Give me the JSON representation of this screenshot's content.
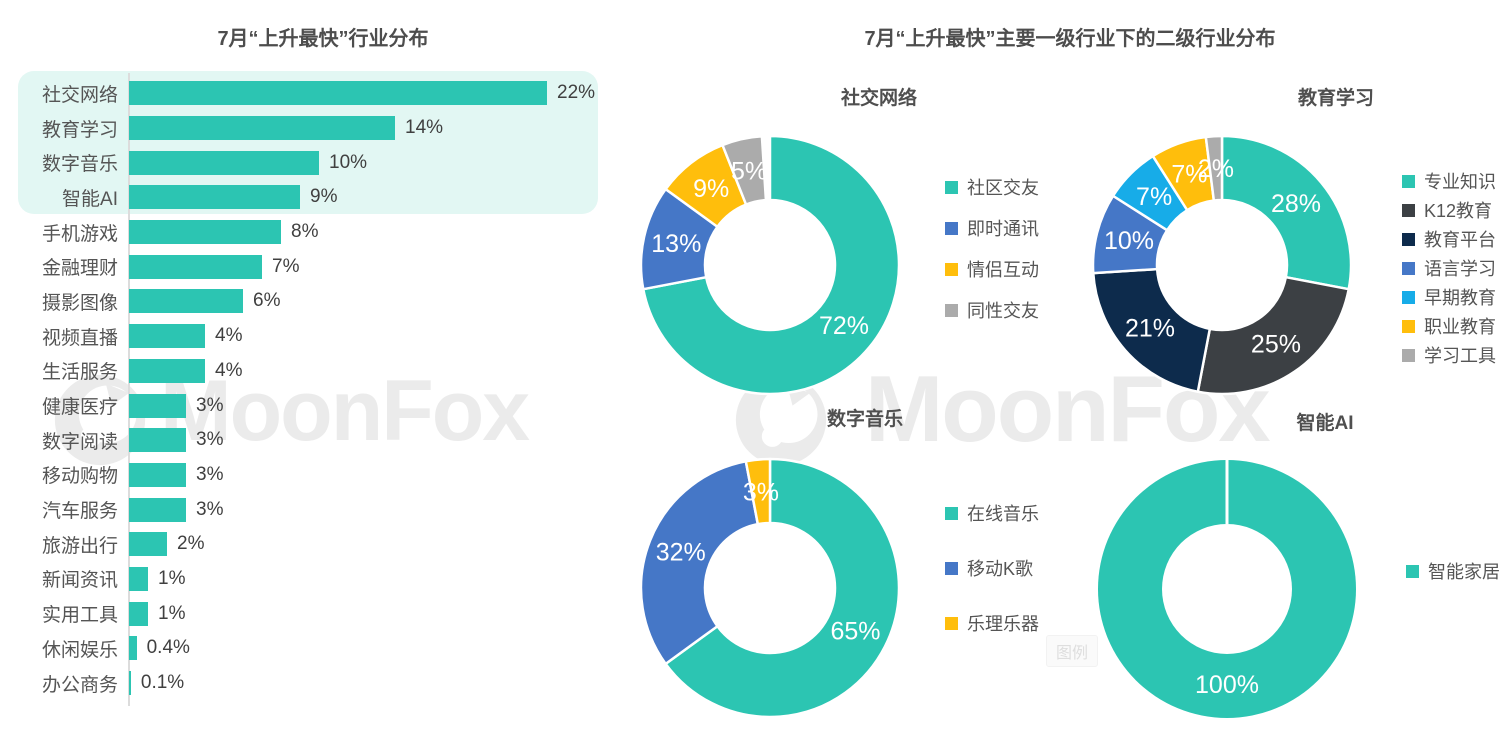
{
  "right_section_title": "7月“上升最快”主要一级行业下的二级行业分布",
  "watermark": {
    "brand": "MoonFox",
    "legend_box_label": "图例"
  },
  "chart_data": [
    {
      "type": "bar",
      "title": "7月“上升最快”行业分布",
      "unit": "%",
      "xlim": [
        0,
        23
      ],
      "grid": false,
      "highlighted_categories": [
        "社交网络",
        "教育学习",
        "数字音乐",
        "智能AI"
      ],
      "categories": [
        "社交网络",
        "教育学习",
        "数字音乐",
        "智能AI",
        "手机游戏",
        "金融理财",
        "摄影图像",
        "视频直播",
        "生活服务",
        "健康医疗",
        "数字阅读",
        "移动购物",
        "汽车服务",
        "旅游出行",
        "新闻资讯",
        "实用工具",
        "休闲娱乐",
        "办公商务"
      ],
      "values": [
        22,
        14,
        10,
        9,
        8,
        7,
        6,
        4,
        4,
        3,
        3,
        3,
        3,
        2,
        1,
        1,
        0.4,
        0.1
      ],
      "value_labels": [
        "22%",
        "14%",
        "10%",
        "9%",
        "8%",
        "7%",
        "6%",
        "4%",
        "4%",
        "3%",
        "3%",
        "3%",
        "3%",
        "2%",
        "1%",
        "1%",
        "0.4%",
        "0.1%"
      ],
      "bar_color": "#2cc5b2"
    },
    {
      "type": "donut",
      "title": "社交网络",
      "legend_position": "right",
      "labels": [
        "社区交友",
        "即时通讯",
        "情侣互动",
        "同性交友"
      ],
      "values": [
        72,
        13,
        9,
        5
      ],
      "value_labels": [
        "72%",
        "13%",
        "9%",
        "5%"
      ],
      "colors": [
        "#2cc5b2",
        "#4577c7",
        "#ffbe0c",
        "#ababab"
      ]
    },
    {
      "type": "donut",
      "title": "教育学习",
      "legend_position": "right",
      "labels": [
        "专业知识",
        "K12教育",
        "教育平台",
        "语言学习",
        "早期教育",
        "职业教育",
        "学习工具"
      ],
      "values": [
        28,
        25,
        21,
        10,
        7,
        7,
        2
      ],
      "value_labels": [
        "28%",
        "25%",
        "21%",
        "10%",
        "7%",
        "7%",
        "2%"
      ],
      "colors": [
        "#2cc5b2",
        "#3c4044",
        "#0d2b4c",
        "#4577c7",
        "#17ace8",
        "#ffbe0c",
        "#ababab"
      ]
    },
    {
      "type": "donut",
      "title": "数字音乐",
      "legend_position": "right",
      "labels": [
        "在线音乐",
        "移动K歌",
        "乐理乐器"
      ],
      "values": [
        65,
        32,
        3
      ],
      "value_labels": [
        "65%",
        "32%",
        "3%"
      ],
      "colors": [
        "#2cc5b2",
        "#4577c7",
        "#ffbe0c"
      ]
    },
    {
      "type": "donut",
      "title": "智能AI",
      "legend_position": "right",
      "labels": [
        "智能家居"
      ],
      "values": [
        100
      ],
      "value_labels": [
        "100%"
      ],
      "colors": [
        "#2cc5b2"
      ]
    }
  ]
}
